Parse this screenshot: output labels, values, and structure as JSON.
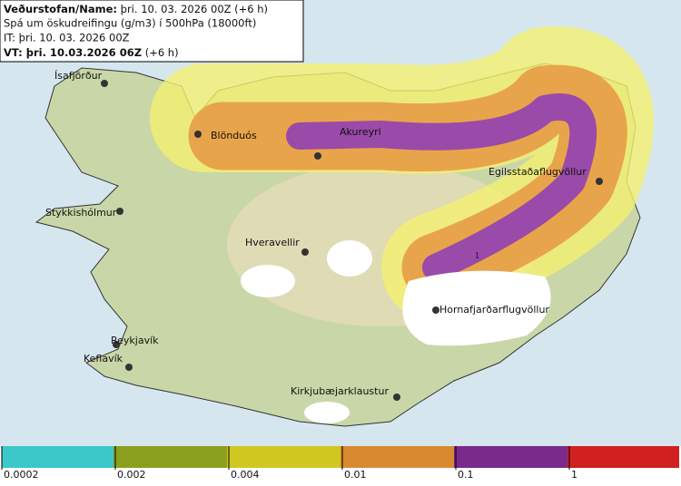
{
  "header": {
    "line1_label": "Veðurstofan/Name:",
    "line1_text": "þri. 10. 03. 2026 00Z (+6 h)",
    "line2": "Spá um öskudreifingu (g/m3) í 500hPa (18000ft)",
    "line3": "IT: þri. 10. 03. 2026 00Z",
    "line4_label": "VT: þri. 10.03.2026 06Z",
    "line4_text": "(+6 h)"
  },
  "places": [
    "Ísafjörður",
    "Blönduós",
    "Akureyri",
    "Egilsstaðaflugvöllur",
    "Stykkishólmur",
    "Hveravellir",
    "Reykjavík",
    "Keflavík",
    "Hornafjarðarflugvöllur",
    "Kirkjubæjarklaustur"
  ],
  "contour_label": "1",
  "legend": {
    "ticks": [
      "0.0002",
      "0.002",
      "0.004",
      "0.01",
      "0.1",
      "1"
    ]
  }
}
